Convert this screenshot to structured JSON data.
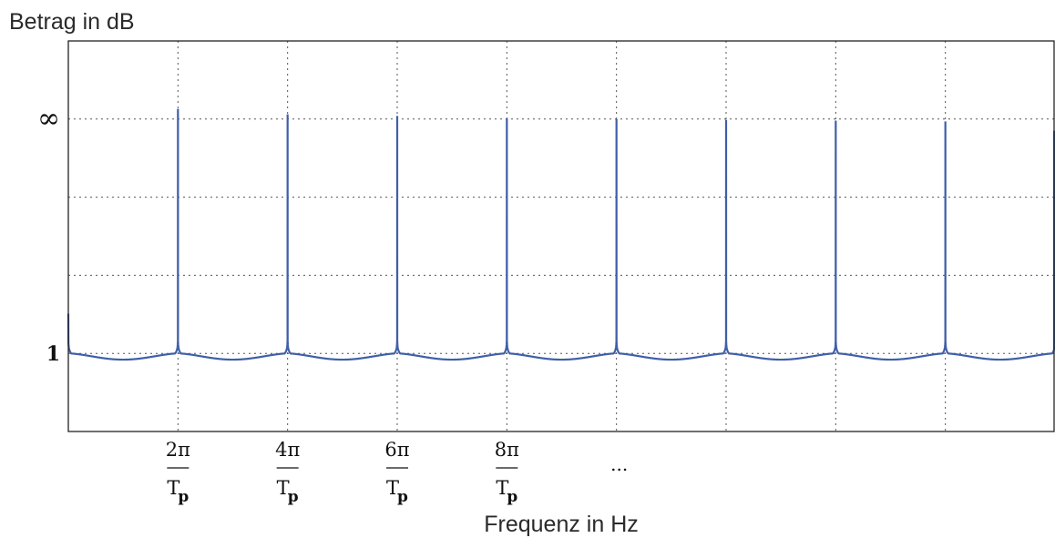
{
  "chart_data": {
    "type": "line",
    "xlabel": "Frequenz in Hz",
    "ylabel": "Betrag in dB",
    "x_ticks": [
      {
        "x": 1,
        "numerator": "2π",
        "denominator": "T",
        "subscript": "p"
      },
      {
        "x": 2,
        "numerator": "4π",
        "denominator": "T",
        "subscript": "p"
      },
      {
        "x": 3,
        "numerator": "6π",
        "denominator": "T",
        "subscript": "p"
      },
      {
        "x": 4,
        "numerator": "8π",
        "denominator": "T",
        "subscript": "p"
      },
      {
        "x": 5,
        "numerator": "",
        "denominator": "",
        "subscript": "",
        "text": "..."
      }
    ],
    "y_ticks": [
      {
        "level": 1,
        "label": "1"
      },
      {
        "level": 4,
        "label": "∞"
      }
    ],
    "xlim": [
      0.0,
      9.0
    ],
    "ylim": [
      0.0,
      5.0
    ],
    "x_grid": [
      1,
      2,
      3,
      4,
      5,
      6,
      7,
      8,
      9
    ],
    "y_grid": [
      1,
      2,
      3,
      4
    ],
    "grid": true,
    "series": [
      {
        "color": "#3f5fa8",
        "baseline": 1.0,
        "dip": 0.08,
        "peaks": [
          {
            "x": 1,
            "y": 4.13
          },
          {
            "x": 2,
            "y": 4.06
          },
          {
            "x": 3,
            "y": 4.04
          },
          {
            "x": 4,
            "y": 4.01
          },
          {
            "x": 5,
            "y": 4.0
          },
          {
            "x": 6,
            "y": 3.99
          },
          {
            "x": 7,
            "y": 3.98
          },
          {
            "x": 8,
            "y": 3.97
          },
          {
            "x": 9,
            "y": 3.85
          }
        ]
      }
    ]
  }
}
